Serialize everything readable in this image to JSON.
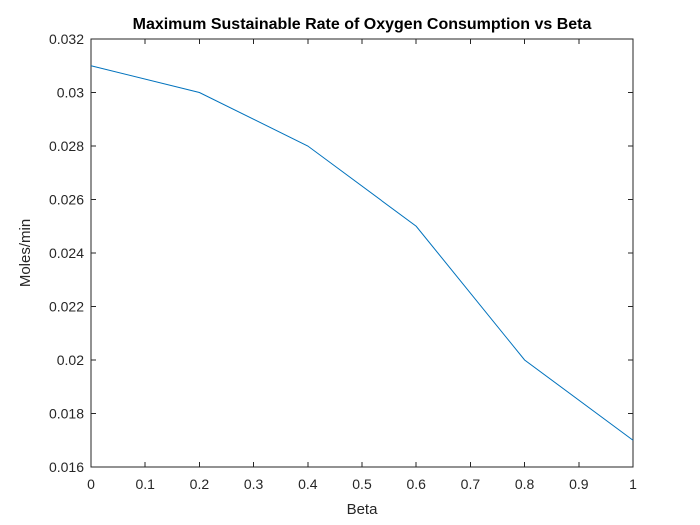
{
  "chart_data": {
    "type": "line",
    "title": "Maximum Sustainable Rate of Oxygen Consumption vs Beta",
    "xlabel": "Beta",
    "ylabel": "Moles/min",
    "xlim": [
      0,
      1
    ],
    "ylim": [
      0.016,
      0.032
    ],
    "xticks": [
      0,
      0.1,
      0.2,
      0.3,
      0.4,
      0.5,
      0.6,
      0.7,
      0.8,
      0.9,
      1
    ],
    "xtick_labels": [
      "0",
      "0.1",
      "0.2",
      "0.3",
      "0.4",
      "0.5",
      "0.6",
      "0.7",
      "0.8",
      "0.9",
      "1"
    ],
    "yticks": [
      0.016,
      0.018,
      0.02,
      0.022,
      0.024,
      0.026,
      0.028,
      0.03,
      0.032
    ],
    "ytick_labels": [
      "0.016",
      "0.018",
      "0.02",
      "0.022",
      "0.024",
      "0.026",
      "0.028",
      "0.03",
      "0.032"
    ],
    "grid": false,
    "series": [
      {
        "color": "#0072bd",
        "x": [
          0,
          0.2,
          0.4,
          0.6,
          0.8,
          1
        ],
        "y": [
          0.031,
          0.03,
          0.028,
          0.025,
          0.02,
          0.017
        ]
      }
    ]
  }
}
